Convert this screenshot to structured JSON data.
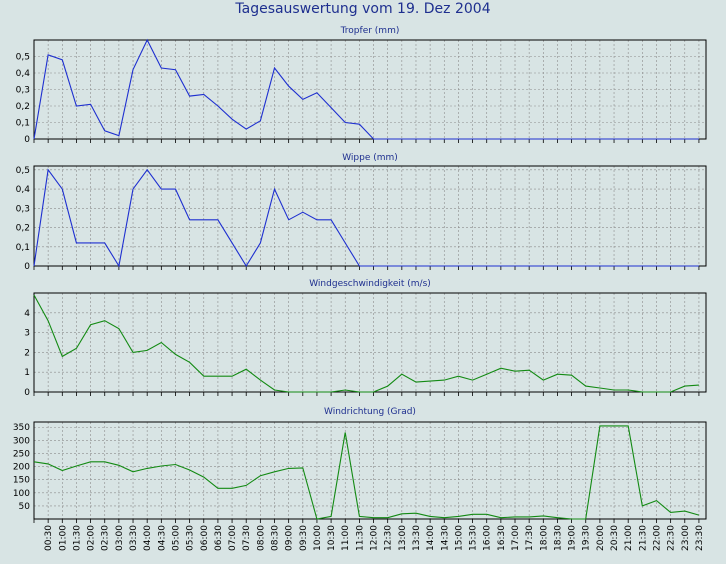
{
  "title": "Tagesauswertung vom 19. Dez 2004",
  "colors": {
    "background": "#d8e4e4",
    "title": "#1e2f8f",
    "blue_series": "#1e2fd0",
    "green_series": "#138a13",
    "grid": "#8c8c8c"
  },
  "chart_data": [
    {
      "type": "line",
      "title": "Tropfer (mm)",
      "color": "blue",
      "ylim": [
        0,
        0.6
      ],
      "yticks": [
        {
          "v": 0,
          "label": "0"
        },
        {
          "v": 0.1,
          "label": "0,1"
        },
        {
          "v": 0.2,
          "label": "0,2"
        },
        {
          "v": 0.3,
          "label": "0,3"
        },
        {
          "v": 0.4,
          "label": "0,4"
        },
        {
          "v": 0.5,
          "label": "0,5"
        }
      ],
      "grid": true,
      "x_hours": [
        0,
        0.5,
        1,
        1.5,
        2,
        2.5,
        3,
        3.5,
        4,
        4.5,
        5,
        5.5,
        6,
        6.5,
        7,
        7.5,
        8,
        8.5,
        9,
        9.5,
        10,
        10.5,
        11,
        11.5,
        12,
        12.5,
        13,
        13.5,
        14,
        14.5,
        15,
        15.5,
        16,
        16.5,
        17,
        17.5,
        18,
        18.5,
        19,
        19.5,
        20,
        20.5,
        21,
        21.5,
        22,
        22.5,
        23,
        23.5
      ],
      "values": [
        0,
        0.51,
        0.48,
        0.2,
        0.21,
        0.05,
        0.02,
        0.42,
        0.6,
        0.43,
        0.42,
        0.26,
        0.27,
        0.2,
        0.12,
        0.06,
        0.11,
        0.43,
        0.32,
        0.24,
        0.28,
        0.19,
        0.1,
        0.09,
        0,
        0,
        0,
        0,
        0,
        0,
        0,
        0,
        0,
        0,
        0,
        0,
        0,
        0,
        0,
        0,
        0,
        0,
        0,
        0,
        0,
        0,
        0,
        0
      ]
    },
    {
      "type": "line",
      "title": "Wippe (mm)",
      "color": "blue",
      "ylim": [
        0,
        0.52
      ],
      "yticks": [
        {
          "v": 0,
          "label": "0"
        },
        {
          "v": 0.1,
          "label": "0,1"
        },
        {
          "v": 0.2,
          "label": "0,2"
        },
        {
          "v": 0.3,
          "label": "0,3"
        },
        {
          "v": 0.4,
          "label": "0,4"
        },
        {
          "v": 0.5,
          "label": "0,5"
        }
      ],
      "grid": true,
      "x_hours": [
        0,
        0.5,
        1,
        1.5,
        2,
        2.5,
        3,
        3.5,
        4,
        4.5,
        5,
        5.5,
        6,
        6.5,
        7,
        7.5,
        8,
        8.5,
        9,
        9.5,
        10,
        10.5,
        11,
        11.5,
        12,
        12.5,
        13,
        13.5,
        14,
        14.5,
        15,
        15.5,
        16,
        16.5,
        17,
        17.5,
        18,
        18.5,
        19,
        19.5,
        20,
        20.5,
        21,
        21.5,
        22,
        22.5,
        23,
        23.5
      ],
      "values": [
        0,
        0.5,
        0.4,
        0.12,
        0.12,
        0.12,
        0,
        0.4,
        0.5,
        0.4,
        0.4,
        0.24,
        0.24,
        0.24,
        0.12,
        0,
        0.12,
        0.4,
        0.24,
        0.28,
        0.24,
        0.24,
        0.12,
        0,
        0,
        0,
        0,
        0,
        0,
        0,
        0,
        0,
        0,
        0,
        0,
        0,
        0,
        0,
        0,
        0,
        0,
        0,
        0,
        0,
        0,
        0,
        0,
        0
      ]
    },
    {
      "type": "line",
      "title": "Windgeschwindigkeit (m/s)",
      "color": "green",
      "ylim": [
        0,
        5
      ],
      "yticks": [
        {
          "v": 0,
          "label": "0"
        },
        {
          "v": 1,
          "label": "1"
        },
        {
          "v": 2,
          "label": "2"
        },
        {
          "v": 3,
          "label": "3"
        },
        {
          "v": 4,
          "label": "4"
        }
      ],
      "grid": true,
      "x_hours": [
        0,
        0.5,
        1,
        1.5,
        2,
        2.5,
        3,
        3.5,
        4,
        4.5,
        5,
        5.5,
        6,
        6.5,
        7,
        7.5,
        8,
        8.5,
        9,
        9.5,
        10,
        10.5,
        11,
        11.5,
        12,
        12.5,
        13,
        13.5,
        14,
        14.5,
        15,
        15.5,
        16,
        16.5,
        17,
        17.5,
        18,
        18.5,
        19,
        19.5,
        20,
        20.5,
        21,
        21.5,
        22,
        22.5,
        23,
        23.5
      ],
      "values": [
        4.9,
        3.6,
        1.8,
        2.2,
        3.4,
        3.6,
        3.2,
        2,
        2.1,
        2.5,
        1.9,
        1.5,
        0.8,
        0.8,
        0.8,
        1.15,
        0.6,
        0.1,
        0,
        0,
        0,
        0,
        0.1,
        0,
        0,
        0.3,
        0.9,
        0.5,
        0.55,
        0.6,
        0.8,
        0.6,
        0.9,
        1.2,
        1.05,
        1.1,
        0.6,
        0.9,
        0.85,
        0.3,
        0.2,
        0.1,
        0.1,
        0,
        0,
        0,
        0.3,
        0.35
      ]
    },
    {
      "type": "line",
      "title": "Windrichtung (Grad)",
      "color": "green",
      "ylim": [
        0,
        370
      ],
      "yticks": [
        {
          "v": 50,
          "label": "50"
        },
        {
          "v": 100,
          "label": "100"
        },
        {
          "v": 150,
          "label": "150"
        },
        {
          "v": 200,
          "label": "200"
        },
        {
          "v": 250,
          "label": "250"
        },
        {
          "v": 300,
          "label": "300"
        },
        {
          "v": 350,
          "label": "350"
        }
      ],
      "grid": true,
      "x_hours": [
        0,
        0.5,
        1,
        1.5,
        2,
        2.5,
        3,
        3.5,
        4,
        4.5,
        5,
        5.5,
        6,
        6.5,
        7,
        7.5,
        8,
        8.5,
        9,
        9.5,
        10,
        10.5,
        11,
        11.5,
        12,
        12.5,
        13,
        13.5,
        14,
        14.5,
        15,
        15.5,
        16,
        16.5,
        17,
        17.5,
        18,
        18.5,
        19,
        19.5,
        20,
        20.5,
        21,
        21.5,
        22,
        22.5,
        23,
        23.5
      ],
      "values": [
        218,
        210,
        185,
        202,
        218,
        218,
        205,
        180,
        193,
        202,
        208,
        187,
        160,
        117,
        117,
        128,
        165,
        180,
        193,
        195,
        0,
        10,
        330,
        10,
        5,
        5,
        20,
        22,
        10,
        5,
        10,
        18,
        18,
        5,
        8,
        8,
        12,
        5,
        0,
        0,
        355,
        355,
        355,
        50,
        70,
        25,
        30,
        15
      ]
    }
  ],
  "x_tick_labels": [
    "00:30",
    "01:00",
    "01:30",
    "02:00",
    "02:30",
    "03:00",
    "03:30",
    "04:00",
    "04:30",
    "05:00",
    "05:30",
    "06:00",
    "06:30",
    "07:00",
    "07:30",
    "08:00",
    "08:30",
    "09:00",
    "09:30",
    "10:00",
    "10:30",
    "11:00",
    "11:30",
    "12:00",
    "12:30",
    "13:00",
    "13:30",
    "14:00",
    "14:30",
    "15:00",
    "15:30",
    "16:00",
    "16:30",
    "17:00",
    "17:30",
    "18:00",
    "18:30",
    "19:00",
    "19:30",
    "20:00",
    "20:30",
    "21:00",
    "21:30",
    "22:00",
    "22:30",
    "23:00",
    "23:30"
  ]
}
